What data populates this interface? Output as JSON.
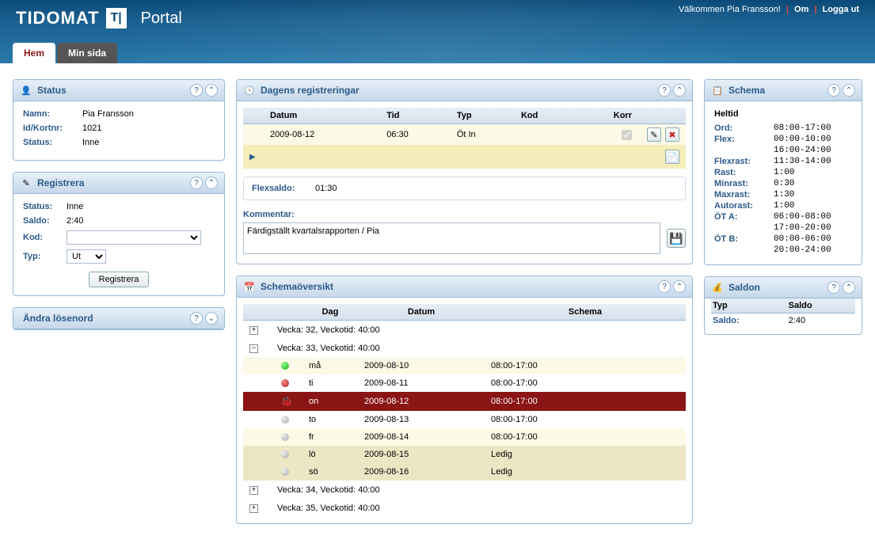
{
  "header": {
    "logo": "TIDOMAT",
    "portal": "Portal",
    "welcome": "Välkommen Pia Fransson!",
    "about": "Om",
    "logout": "Logga ut"
  },
  "tabs": {
    "home": "Hem",
    "mypage": "Min sida"
  },
  "status_panel": {
    "title": "Status",
    "rows": [
      {
        "k": "Namn:",
        "v": "Pia Fransson"
      },
      {
        "k": "Id/Kortnr:",
        "v": "1021"
      },
      {
        "k": "Status:",
        "v": "Inne"
      }
    ]
  },
  "register_panel": {
    "title": "Registrera",
    "rows": [
      {
        "k": "Status:",
        "v": "Inne"
      },
      {
        "k": "Saldo:",
        "v": "2:40"
      }
    ],
    "kod_label": "Kod:",
    "kod_value": "",
    "typ_label": "Typ:",
    "typ_value": "Ut",
    "button": "Registrera"
  },
  "password_panel": {
    "title": "Ändra lösenord"
  },
  "today_panel": {
    "title": "Dagens registreringar",
    "cols": {
      "datum": "Datum",
      "tid": "Tid",
      "typ": "Typ",
      "kod": "Kod",
      "korr": "Korr"
    },
    "row": {
      "datum": "2009-08-12",
      "tid": "06:30",
      "typ": "Öt In",
      "kod": ""
    },
    "flexsaldo_label": "Flexsaldo:",
    "flexsaldo_value": "01:30",
    "kommentar_label": "Kommentar:",
    "kommentar_value": "Färdigställt kvartalsrapporten / Pia"
  },
  "overview_panel": {
    "title": "Schemaöversikt",
    "cols": {
      "dag": "Dag",
      "datum": "Datum",
      "schema": "Schema"
    },
    "weeks": [
      {
        "collapsed": true,
        "label": "Vecka: 32, Veckotid: 40:00"
      },
      {
        "collapsed": false,
        "label": "Vecka: 33, Veckotid: 40:00",
        "days": [
          {
            "dot": "green",
            "dag": "må",
            "datum": "2009-08-10",
            "schema": "08:00-17:00",
            "alt": true
          },
          {
            "dot": "red",
            "dag": "ti",
            "datum": "2009-08-11",
            "schema": "08:00-17:00",
            "alt": false
          },
          {
            "dot": "bug",
            "dag": "on",
            "datum": "2009-08-12",
            "schema": "08:00-17:00",
            "today": true
          },
          {
            "dot": "grey",
            "dag": "to",
            "datum": "2009-08-13",
            "schema": "08:00-17:00",
            "alt": false
          },
          {
            "dot": "grey",
            "dag": "fr",
            "datum": "2009-08-14",
            "schema": "08:00-17:00",
            "alt": true
          },
          {
            "dot": "grey",
            "dag": "lö",
            "datum": "2009-08-15",
            "schema": "Ledig",
            "wknd": true
          },
          {
            "dot": "grey",
            "dag": "sö",
            "datum": "2009-08-16",
            "schema": "Ledig",
            "wknd": true
          }
        ]
      },
      {
        "collapsed": true,
        "label": "Vecka: 34, Veckotid: 40:00"
      },
      {
        "collapsed": true,
        "label": "Vecka: 35, Veckotid: 40:00"
      }
    ]
  },
  "schema_panel": {
    "title": "Schema",
    "subtitle": "Heltid",
    "rows": [
      {
        "k": "Ord:",
        "v": "08:00-17:00"
      },
      {
        "k": "Flex:",
        "v": "00:00-10:00"
      },
      {
        "k": "",
        "v": "16:00-24:00"
      },
      {
        "k": "Flexrast:",
        "v": "11:30-14:00"
      },
      {
        "k": "Rast:",
        "v": "1:00"
      },
      {
        "k": "Minrast:",
        "v": "0:30"
      },
      {
        "k": "Maxrast:",
        "v": "1:30"
      },
      {
        "k": "Autorast:",
        "v": "1:00"
      },
      {
        "k": "ÖT A:",
        "v": "06:00-08:00"
      },
      {
        "k": "",
        "v": "17:00-20:00"
      },
      {
        "k": "ÖT B:",
        "v": "00:00-06:00"
      },
      {
        "k": "",
        "v": "20:00-24:00"
      }
    ]
  },
  "saldo_panel": {
    "title": "Saldon",
    "col1": "Typ",
    "col2": "Saldo",
    "row": {
      "k": "Saldo:",
      "v": "2:40"
    }
  }
}
